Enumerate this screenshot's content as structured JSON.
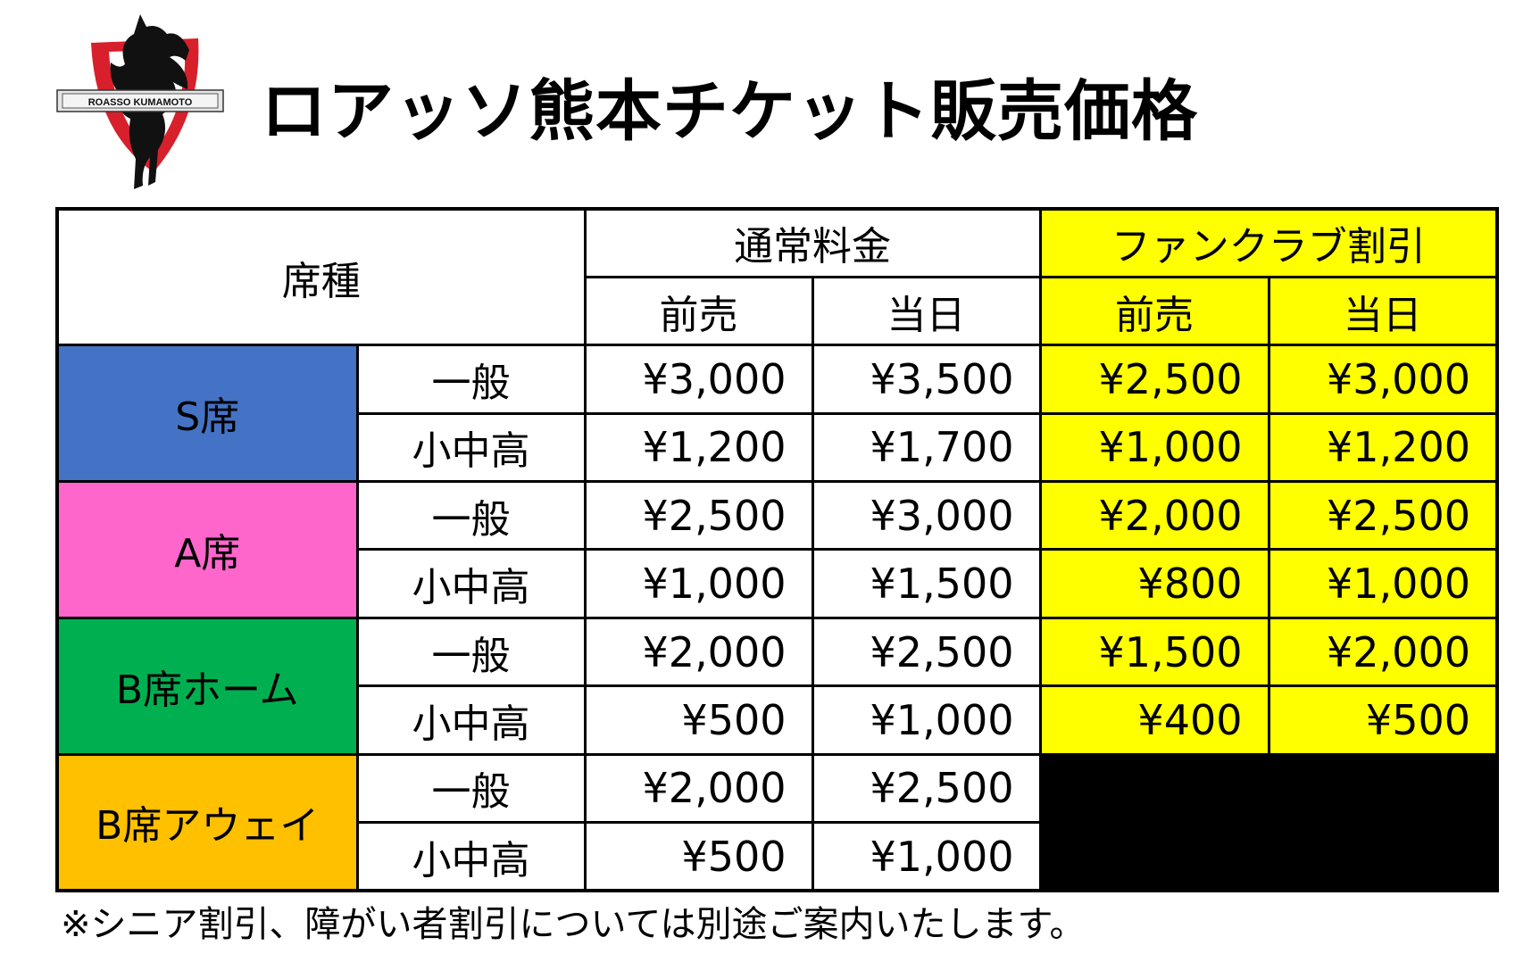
{
  "logo": {
    "text": "ROASSO KUMAMOTO",
    "icon": "horse-emblem-icon"
  },
  "title": "ロアッソ熊本チケット販売価格",
  "table": {
    "seat_type_header": "席種",
    "regular_header": "通常料金",
    "fanclub_header": "ファンクラブ割引",
    "advance_label": "前売",
    "dayof_label": "当日",
    "sections": [
      {
        "name": "S席",
        "color": "#4472c4",
        "rows": [
          {
            "type": "一般",
            "regular_adv": "¥3,000",
            "regular_day": "¥3,500",
            "fan_adv": "¥2,500",
            "fan_day": "¥3,000"
          },
          {
            "type": "小中高",
            "regular_adv": "¥1,200",
            "regular_day": "¥1,700",
            "fan_adv": "¥1,000",
            "fan_day": "¥1,200"
          }
        ]
      },
      {
        "name": "A席",
        "color": "#ff66cc",
        "rows": [
          {
            "type": "一般",
            "regular_adv": "¥2,500",
            "regular_day": "¥3,000",
            "fan_adv": "¥2,000",
            "fan_day": "¥2,500"
          },
          {
            "type": "小中高",
            "regular_adv": "¥1,000",
            "regular_day": "¥1,500",
            "fan_adv": "¥800",
            "fan_day": "¥1,000"
          }
        ]
      },
      {
        "name": "B席ホーム",
        "color": "#00b050",
        "rows": [
          {
            "type": "一般",
            "regular_adv": "¥2,000",
            "regular_day": "¥2,500",
            "fan_adv": "¥1,500",
            "fan_day": "¥2,000"
          },
          {
            "type": "小中高",
            "regular_adv": "¥500",
            "regular_day": "¥1,000",
            "fan_adv": "¥400",
            "fan_day": "¥500"
          }
        ]
      },
      {
        "name": "B席アウェイ",
        "color": "#ffc000",
        "rows": [
          {
            "type": "一般",
            "regular_adv": "¥2,000",
            "regular_day": "¥2,500"
          },
          {
            "type": "小中高",
            "regular_adv": "¥500",
            "regular_day": "¥1,000"
          }
        ]
      }
    ]
  },
  "note": "※シニア割引、障がい者割引については別途ご案内いたします。",
  "colors": {
    "fanclub": "#ffff00",
    "unavailable": "#000000"
  }
}
